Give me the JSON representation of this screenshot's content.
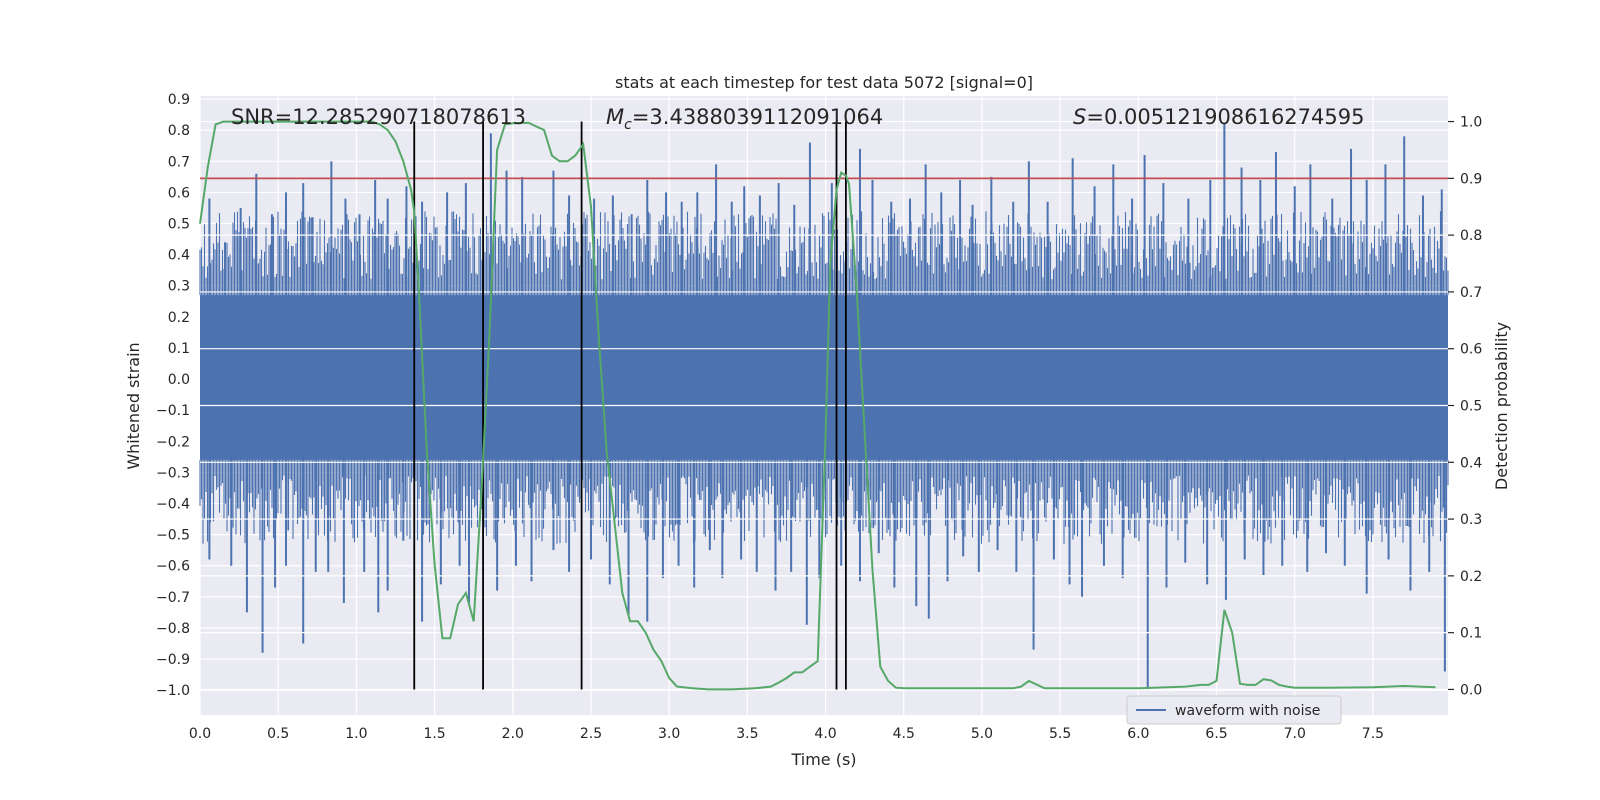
{
  "chart_data": {
    "type": "line",
    "title": "stats at each timestep for test data 5072 [signal=0]",
    "xlabel": "Time (s)",
    "ylabel": "Whitened strain",
    "y2label": "Detection probability",
    "xlim": [
      0.0,
      7.98
    ],
    "ylim": [
      -1.08,
      0.91
    ],
    "y2lim": [
      -0.045,
      1.045
    ],
    "xticks": [
      "0.0",
      "0.5",
      "1.0",
      "1.5",
      "2.0",
      "2.5",
      "3.0",
      "3.5",
      "4.0",
      "4.5",
      "5.0",
      "5.5",
      "6.0",
      "6.5",
      "7.0",
      "7.5"
    ],
    "yticks": [
      "0.9",
      "0.8",
      "0.7",
      "0.6",
      "0.5",
      "0.4",
      "0.3",
      "0.2",
      "0.1",
      "0.0",
      "−0.1",
      "−0.2",
      "−0.3",
      "−0.4",
      "−0.5",
      "−0.6",
      "−0.7",
      "−0.8",
      "−0.9",
      "−1.0"
    ],
    "y2ticks": [
      "1.0",
      "0.9",
      "0.8",
      "0.7",
      "0.6",
      "0.5",
      "0.4",
      "0.3",
      "0.2",
      "0.1",
      "0.0"
    ],
    "annotations": {
      "snr": "SNR=12.285290718078613",
      "mc_symbol": "M",
      "mc_sub": "c",
      "mc_value": "=3.4388039112091064",
      "s_symbol": "S",
      "s_value": "=0.005121908616274595"
    },
    "legend": {
      "label": "waveform with noise",
      "loc": "lower-right"
    },
    "threshold": {
      "y2": 0.9,
      "color": "#c44e52"
    },
    "vlines_x": [
      1.37,
      1.81,
      2.44,
      4.07,
      4.13
    ],
    "waveform": {
      "name": "waveform with noise",
      "color": "#4c72b0",
      "band_low": -0.26,
      "band_high": 0.27,
      "spikes": [
        [
          0.06,
          0.58
        ],
        [
          0.16,
          0.44
        ],
        [
          0.26,
          0.55
        ],
        [
          0.36,
          0.66
        ],
        [
          0.46,
          0.53
        ],
        [
          0.55,
          0.6
        ],
        [
          0.66,
          0.63
        ],
        [
          0.72,
          0.52
        ],
        [
          0.84,
          0.7
        ],
        [
          0.93,
          0.58
        ],
        [
          1.02,
          0.53
        ],
        [
          1.12,
          0.64
        ],
        [
          1.2,
          0.58
        ],
        [
          1.32,
          0.62
        ],
        [
          1.42,
          0.57
        ],
        [
          1.58,
          0.6
        ],
        [
          1.7,
          0.63
        ],
        [
          1.86,
          0.79
        ],
        [
          1.96,
          0.67
        ],
        [
          2.06,
          0.65
        ],
        [
          2.26,
          0.67
        ],
        [
          2.36,
          0.59
        ],
        [
          2.52,
          0.58
        ],
        [
          2.64,
          0.59
        ],
        [
          2.76,
          0.53
        ],
        [
          2.86,
          0.64
        ],
        [
          2.98,
          0.6
        ],
        [
          3.08,
          0.57
        ],
        [
          3.18,
          0.6
        ],
        [
          3.3,
          0.69
        ],
        [
          3.4,
          0.57
        ],
        [
          3.48,
          0.62
        ],
        [
          3.58,
          0.59
        ],
        [
          3.7,
          0.63
        ],
        [
          3.8,
          0.56
        ],
        [
          3.9,
          0.76
        ],
        [
          4.04,
          0.63
        ],
        [
          4.22,
          0.74
        ],
        [
          4.3,
          0.64
        ],
        [
          4.42,
          0.57
        ],
        [
          4.54,
          0.58
        ],
        [
          4.64,
          0.69
        ],
        [
          4.74,
          0.6
        ],
        [
          4.86,
          0.64
        ],
        [
          4.94,
          0.56
        ],
        [
          5.06,
          0.65
        ],
        [
          5.2,
          0.57
        ],
        [
          5.3,
          0.7
        ],
        [
          5.42,
          0.57
        ],
        [
          5.58,
          0.71
        ],
        [
          5.72,
          0.62
        ],
        [
          5.84,
          0.69
        ],
        [
          5.96,
          0.58
        ],
        [
          6.04,
          0.72
        ],
        [
          6.16,
          0.63
        ],
        [
          6.32,
          0.58
        ],
        [
          6.46,
          0.64
        ],
        [
          6.55,
          0.82
        ],
        [
          6.66,
          0.68
        ],
        [
          6.78,
          0.64
        ],
        [
          6.88,
          0.73
        ],
        [
          7.0,
          0.62
        ],
        [
          7.1,
          0.69
        ],
        [
          7.24,
          0.58
        ],
        [
          7.36,
          0.74
        ],
        [
          7.46,
          0.64
        ],
        [
          7.58,
          0.69
        ],
        [
          7.7,
          0.78
        ],
        [
          7.82,
          0.59
        ],
        [
          7.94,
          0.61
        ]
      ],
      "neg_spikes": [
        [
          0.06,
          -0.58
        ],
        [
          0.2,
          -0.6
        ],
        [
          0.3,
          -0.75
        ],
        [
          0.4,
          -0.88
        ],
        [
          0.48,
          -0.67
        ],
        [
          0.55,
          -0.6
        ],
        [
          0.66,
          -0.85
        ],
        [
          0.74,
          -0.62
        ],
        [
          0.82,
          -0.62
        ],
        [
          0.92,
          -0.72
        ],
        [
          1.05,
          -0.62
        ],
        [
          1.14,
          -0.75
        ],
        [
          1.2,
          -0.68
        ],
        [
          1.3,
          -0.52
        ],
        [
          1.42,
          -0.78
        ],
        [
          1.54,
          -0.66
        ],
        [
          1.66,
          -0.6
        ],
        [
          1.72,
          -0.72
        ],
        [
          1.9,
          -0.68
        ],
        [
          2.02,
          -0.6
        ],
        [
          2.12,
          -0.65
        ],
        [
          2.26,
          -0.55
        ],
        [
          2.36,
          -0.62
        ],
        [
          2.5,
          -0.58
        ],
        [
          2.62,
          -0.66
        ],
        [
          2.74,
          -0.76
        ],
        [
          2.86,
          -0.78
        ],
        [
          2.96,
          -0.64
        ],
        [
          3.06,
          -0.6
        ],
        [
          3.16,
          -0.67
        ],
        [
          3.26,
          -0.55
        ],
        [
          3.34,
          -0.64
        ],
        [
          3.46,
          -0.58
        ],
        [
          3.56,
          -0.62
        ],
        [
          3.68,
          -0.68
        ],
        [
          3.78,
          -0.62
        ],
        [
          3.88,
          -0.79
        ],
        [
          3.96,
          -0.64
        ],
        [
          4.1,
          -0.6
        ],
        [
          4.22,
          -0.65
        ],
        [
          4.34,
          -0.56
        ],
        [
          4.44,
          -0.67
        ],
        [
          4.58,
          -0.73
        ],
        [
          4.66,
          -0.77
        ],
        [
          4.78,
          -0.65
        ],
        [
          4.88,
          -0.57
        ],
        [
          4.98,
          -0.62
        ],
        [
          5.1,
          -0.55
        ],
        [
          5.22,
          -0.62
        ],
        [
          5.33,
          -0.87
        ],
        [
          5.46,
          -0.58
        ],
        [
          5.56,
          -0.66
        ],
        [
          5.64,
          -0.7
        ],
        [
          5.78,
          -0.6
        ],
        [
          5.9,
          -0.64
        ],
        [
          6.06,
          -1.0
        ],
        [
          6.18,
          -0.67
        ],
        [
          6.3,
          -0.59
        ],
        [
          6.44,
          -0.66
        ],
        [
          6.56,
          -0.71
        ],
        [
          6.68,
          -0.58
        ],
        [
          6.8,
          -0.63
        ],
        [
          6.92,
          -0.6
        ],
        [
          7.08,
          -0.62
        ],
        [
          7.2,
          -0.56
        ],
        [
          7.32,
          -0.6
        ],
        [
          7.46,
          -0.69
        ],
        [
          7.6,
          -0.58
        ],
        [
          7.74,
          -0.68
        ],
        [
          7.86,
          -0.62
        ],
        [
          7.96,
          -0.94
        ]
      ]
    },
    "probability": {
      "name": "Detection probability",
      "color": "#55a868",
      "x": [
        0.0,
        0.05,
        0.1,
        0.15,
        0.3,
        0.5,
        0.7,
        0.9,
        1.0,
        1.1,
        1.15,
        1.2,
        1.25,
        1.3,
        1.35,
        1.37,
        1.4,
        1.45,
        1.5,
        1.55,
        1.6,
        1.65,
        1.7,
        1.75,
        1.8,
        1.85,
        1.9,
        1.95,
        2.0,
        2.1,
        2.2,
        2.25,
        2.3,
        2.35,
        2.4,
        2.45,
        2.5,
        2.55,
        2.6,
        2.7,
        2.75,
        2.8,
        2.85,
        2.9,
        2.95,
        3.0,
        3.05,
        3.15,
        3.25,
        3.4,
        3.55,
        3.65,
        3.7,
        3.75,
        3.8,
        3.85,
        3.9,
        3.95,
        4.0,
        4.03,
        4.07,
        4.1,
        4.13,
        4.15,
        4.2,
        4.25,
        4.3,
        4.35,
        4.4,
        4.45,
        4.5,
        4.6,
        4.8,
        5.0,
        5.2,
        5.25,
        5.3,
        5.4,
        6.0,
        6.3,
        6.4,
        6.45,
        6.5,
        6.55,
        6.6,
        6.65,
        6.7,
        6.75,
        6.8,
        6.85,
        6.9,
        6.95,
        7.0,
        7.2,
        7.5,
        7.7,
        7.9
      ],
      "values": [
        0.82,
        0.92,
        0.995,
        1.0,
        1.0,
        1.0,
        1.0,
        1.0,
        1.0,
        1.0,
        0.995,
        0.985,
        0.965,
        0.93,
        0.88,
        0.84,
        0.7,
        0.42,
        0.22,
        0.09,
        0.09,
        0.15,
        0.17,
        0.12,
        0.35,
        0.62,
        0.95,
        0.995,
        0.997,
        0.998,
        0.985,
        0.94,
        0.93,
        0.93,
        0.94,
        0.96,
        0.85,
        0.62,
        0.42,
        0.17,
        0.12,
        0.12,
        0.1,
        0.07,
        0.05,
        0.02,
        0.005,
        0.002,
        0.0,
        0.0,
        0.002,
        0.005,
        0.012,
        0.02,
        0.03,
        0.03,
        0.04,
        0.05,
        0.45,
        0.75,
        0.88,
        0.91,
        0.905,
        0.89,
        0.7,
        0.45,
        0.21,
        0.04,
        0.015,
        0.003,
        0.002,
        0.002,
        0.002,
        0.002,
        0.002,
        0.005,
        0.015,
        0.002,
        0.002,
        0.005,
        0.008,
        0.008,
        0.015,
        0.14,
        0.1,
        0.01,
        0.008,
        0.008,
        0.018,
        0.016,
        0.008,
        0.005,
        0.003,
        0.003,
        0.004,
        0.006,
        0.004
      ]
    }
  }
}
